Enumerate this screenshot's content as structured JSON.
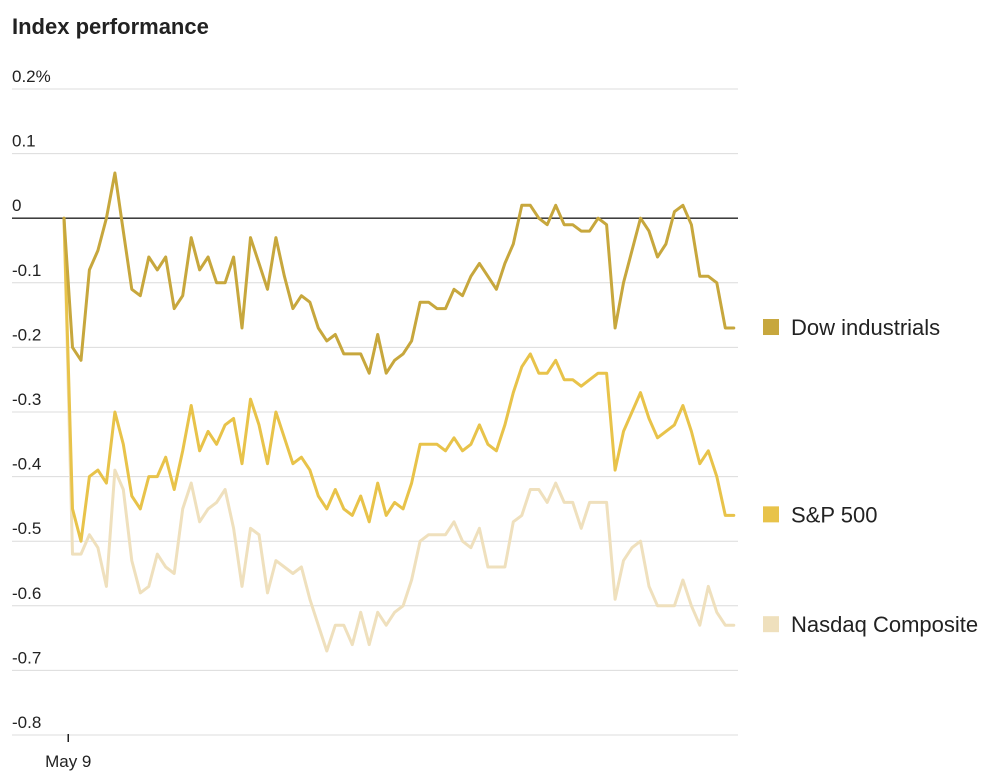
{
  "chart_data": {
    "type": "line",
    "title": "Index performance",
    "xlabel": "",
    "ylabel": "",
    "ylim": [
      -0.8,
      0.2
    ],
    "yticks": [
      0.2,
      0.1,
      0,
      -0.1,
      -0.2,
      -0.3,
      -0.4,
      -0.5,
      -0.6,
      -0.7,
      -0.8
    ],
    "ytick_labels": [
      "0.2%",
      "0.1",
      "0",
      "-0.1",
      "-0.2",
      "-0.3",
      "-0.4",
      "-0.5",
      "-0.6",
      "-0.7",
      "-0.8"
    ],
    "xticks": [
      {
        "x": 0.5,
        "label": "May 9"
      }
    ],
    "xlim": [
      0,
      79.5
    ],
    "grid": true,
    "legend_position": "right",
    "series": [
      {
        "name": "Nasdaq Composite",
        "color": "#efe0bd",
        "values": [
          0,
          -0.52,
          -0.52,
          -0.49,
          -0.51,
          -0.57,
          -0.39,
          -0.42,
          -0.53,
          -0.58,
          -0.57,
          -0.52,
          -0.54,
          -0.55,
          -0.45,
          -0.41,
          -0.47,
          -0.45,
          -0.44,
          -0.42,
          -0.48,
          -0.57,
          -0.48,
          -0.49,
          -0.58,
          -0.53,
          -0.54,
          -0.55,
          -0.54,
          -0.59,
          -0.63,
          -0.67,
          -0.63,
          -0.63,
          -0.66,
          -0.61,
          -0.66,
          -0.61,
          -0.63,
          -0.61,
          -0.6,
          -0.56,
          -0.5,
          -0.49,
          -0.49,
          -0.49,
          -0.47,
          -0.5,
          -0.51,
          -0.48,
          -0.54,
          -0.54,
          -0.54,
          -0.47,
          -0.46,
          -0.42,
          -0.42,
          -0.44,
          -0.41,
          -0.44,
          -0.44,
          -0.48,
          -0.44,
          -0.44,
          -0.44,
          -0.59,
          -0.53,
          -0.51,
          -0.5,
          -0.57,
          -0.6,
          -0.6,
          -0.6,
          -0.56,
          -0.6,
          -0.63,
          -0.57,
          -0.61,
          -0.63,
          -0.63
        ]
      },
      {
        "name": "S&P 500",
        "color": "#e8c34a",
        "values": [
          0,
          -0.45,
          -0.5,
          -0.4,
          -0.39,
          -0.41,
          -0.3,
          -0.35,
          -0.43,
          -0.45,
          -0.4,
          -0.4,
          -0.37,
          -0.42,
          -0.36,
          -0.29,
          -0.36,
          -0.33,
          -0.35,
          -0.32,
          -0.31,
          -0.38,
          -0.28,
          -0.32,
          -0.38,
          -0.3,
          -0.34,
          -0.38,
          -0.37,
          -0.39,
          -0.43,
          -0.45,
          -0.42,
          -0.45,
          -0.46,
          -0.43,
          -0.47,
          -0.41,
          -0.46,
          -0.44,
          -0.45,
          -0.41,
          -0.35,
          -0.35,
          -0.35,
          -0.36,
          -0.34,
          -0.36,
          -0.35,
          -0.32,
          -0.35,
          -0.36,
          -0.32,
          -0.27,
          -0.23,
          -0.21,
          -0.24,
          -0.24,
          -0.22,
          -0.25,
          -0.25,
          -0.26,
          -0.25,
          -0.24,
          -0.24,
          -0.39,
          -0.33,
          -0.3,
          -0.27,
          -0.31,
          -0.34,
          -0.33,
          -0.32,
          -0.29,
          -0.33,
          -0.38,
          -0.36,
          -0.4,
          -0.46,
          -0.46
        ]
      },
      {
        "name": "Dow industrials",
        "color": "#c7a73d",
        "values": [
          0,
          -0.2,
          -0.22,
          -0.08,
          -0.05,
          0,
          0.07,
          -0.02,
          -0.11,
          -0.12,
          -0.06,
          -0.08,
          -0.06,
          -0.14,
          -0.12,
          -0.03,
          -0.08,
          -0.06,
          -0.1,
          -0.1,
          -0.06,
          -0.17,
          -0.03,
          -0.07,
          -0.11,
          -0.03,
          -0.09,
          -0.14,
          -0.12,
          -0.13,
          -0.17,
          -0.19,
          -0.18,
          -0.21,
          -0.21,
          -0.21,
          -0.24,
          -0.18,
          -0.24,
          -0.22,
          -0.21,
          -0.19,
          -0.13,
          -0.13,
          -0.14,
          -0.14,
          -0.11,
          -0.12,
          -0.09,
          -0.07,
          -0.09,
          -0.11,
          -0.07,
          -0.04,
          0.02,
          0.02,
          0,
          -0.01,
          0.02,
          -0.01,
          -0.01,
          -0.02,
          -0.02,
          0,
          -0.01,
          -0.17,
          -0.1,
          -0.05,
          0,
          -0.02,
          -0.06,
          -0.04,
          0.01,
          0.02,
          -0.01,
          -0.09,
          -0.09,
          -0.1,
          -0.17,
          -0.17
        ]
      }
    ]
  }
}
